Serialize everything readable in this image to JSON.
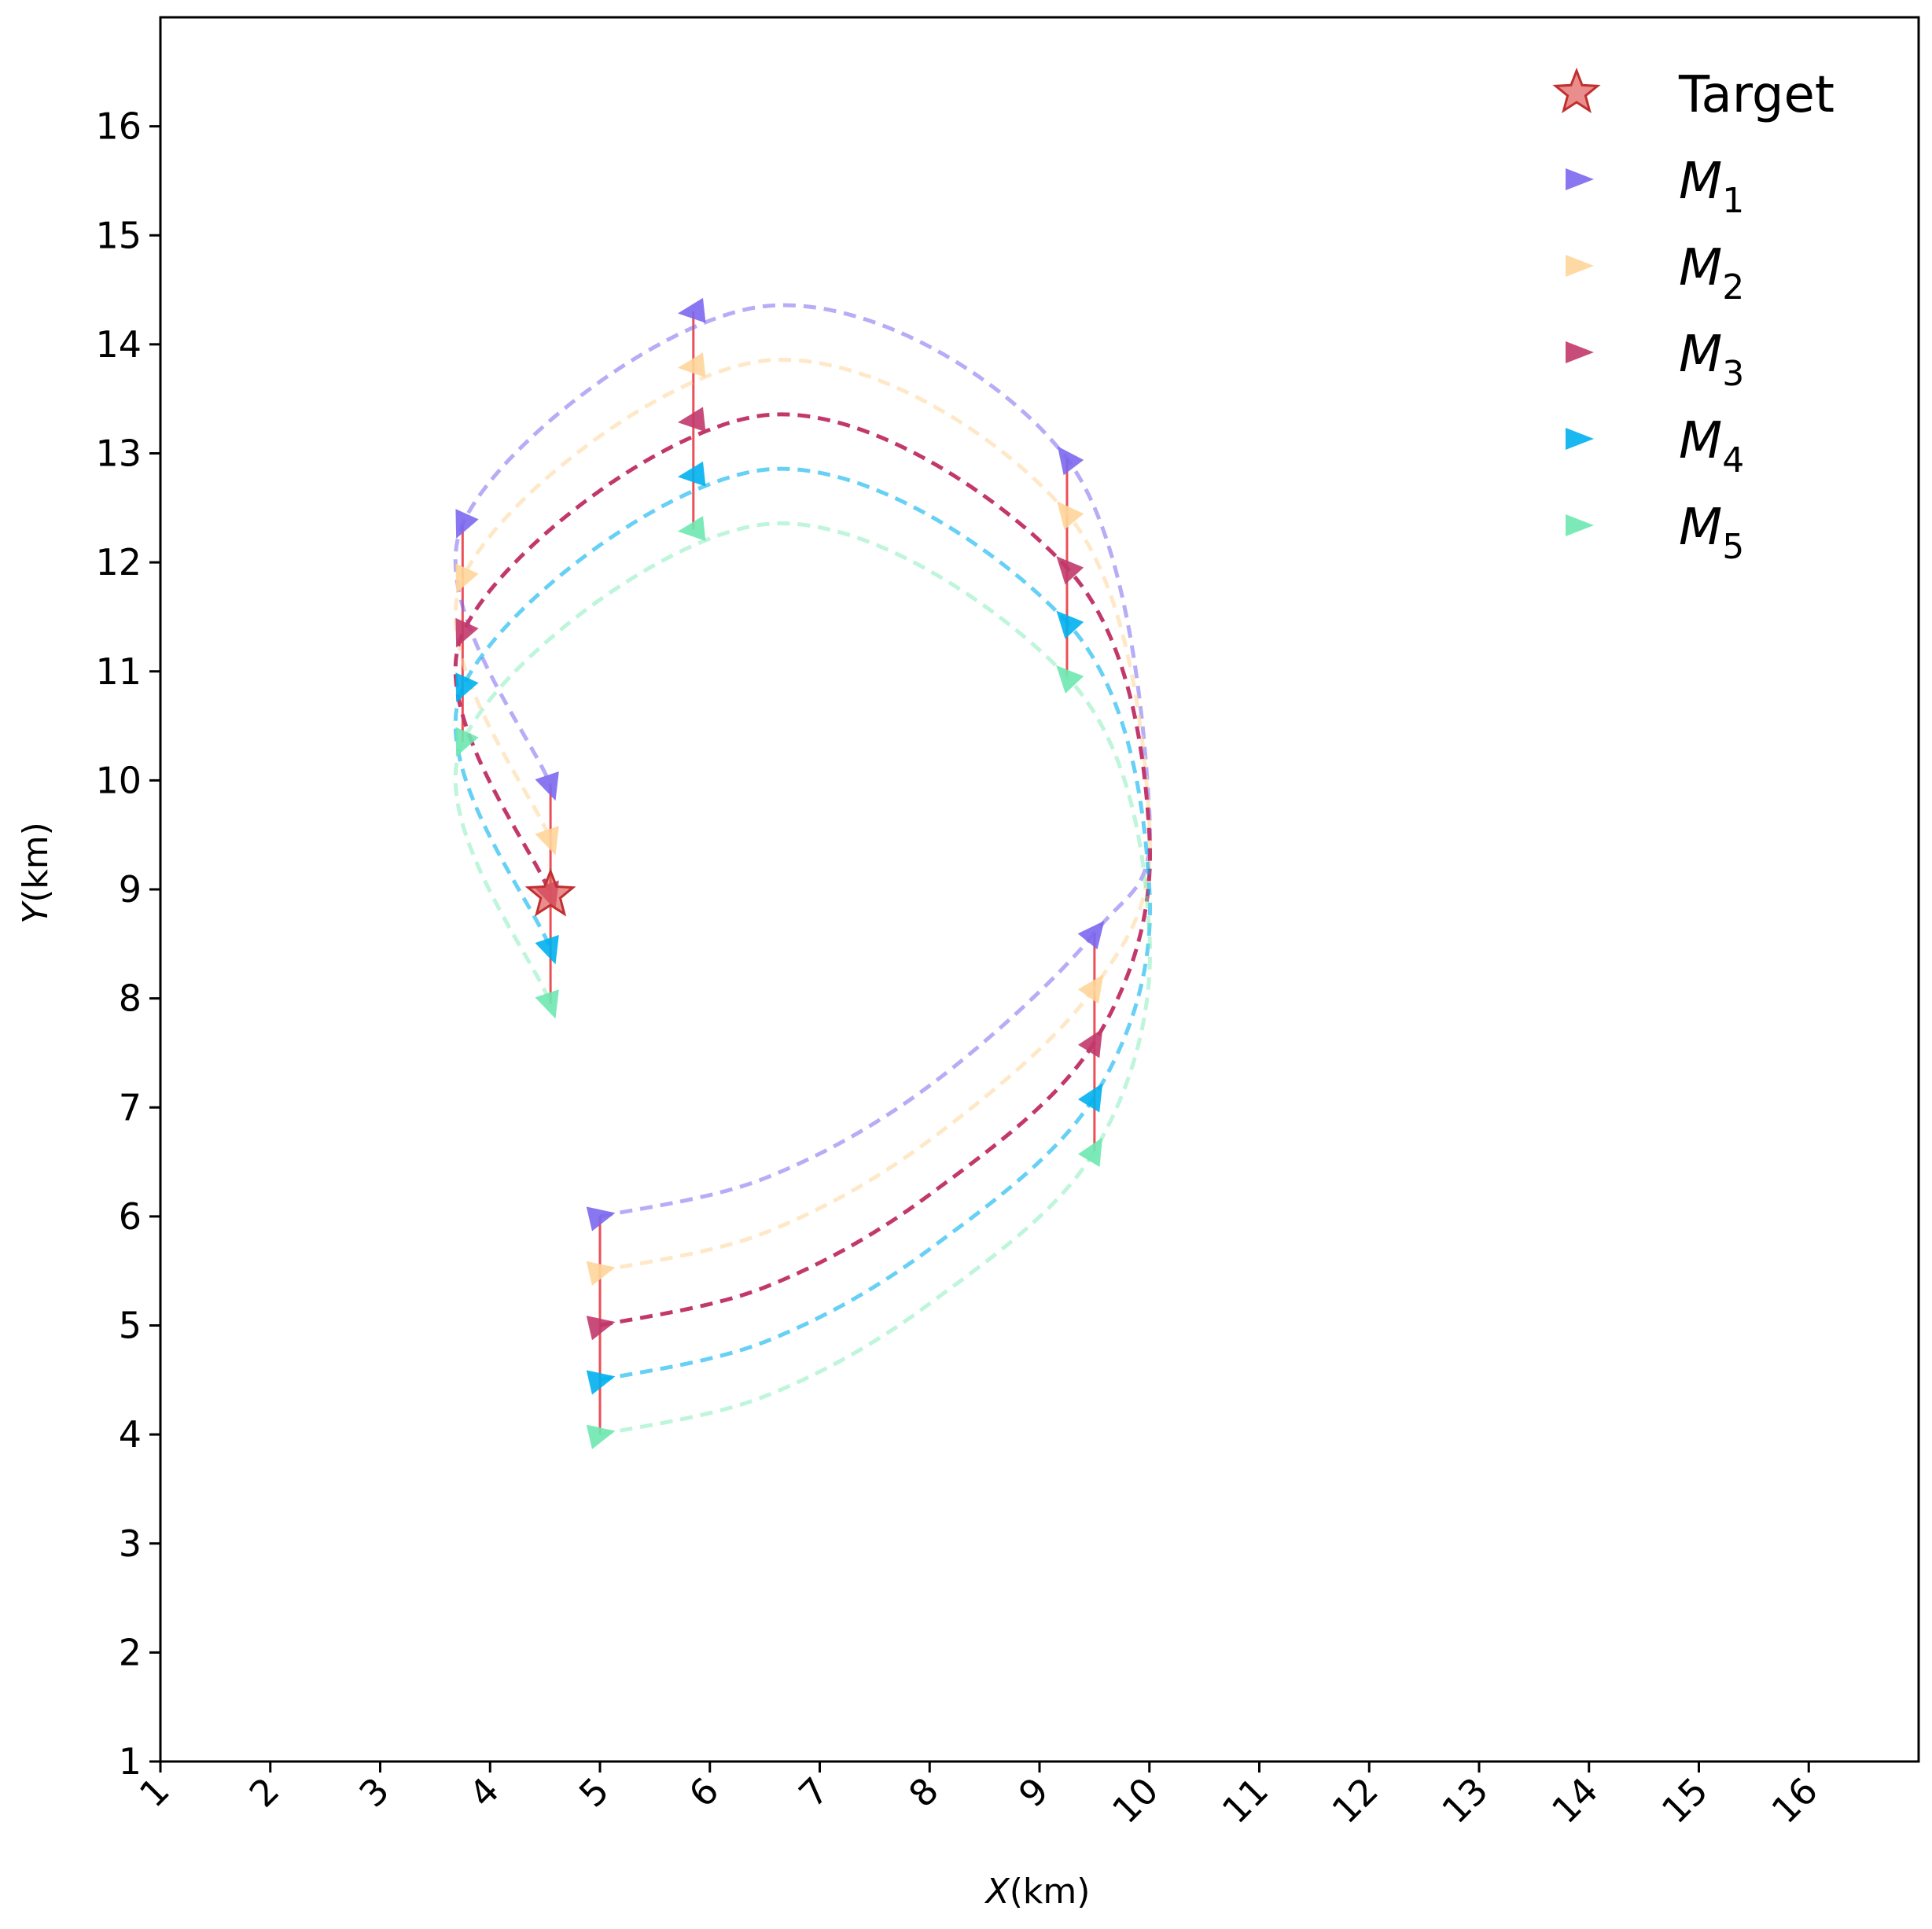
{
  "chart_data": {
    "type": "line",
    "xlabel_var": "X",
    "xlabel_unit": "(km)",
    "ylabel_var": "Y",
    "ylabel_unit": "(km)",
    "xlim": [
      1,
      17
    ],
    "ylim": [
      1,
      17
    ],
    "x_ticks": [
      1,
      2,
      3,
      4,
      5,
      6,
      7,
      8,
      9,
      10,
      11,
      12,
      13,
      14,
      15,
      16
    ],
    "y_ticks": [
      1,
      2,
      3,
      4,
      5,
      6,
      7,
      8,
      9,
      10,
      11,
      12,
      13,
      14,
      15,
      16
    ],
    "grid": false,
    "legend_position": "top-right",
    "target": {
      "label": "Target",
      "x": 4.55,
      "y": 8.95,
      "color": "#e05c5c"
    },
    "series": [
      {
        "name": "M",
        "sub": "1",
        "color": "#7b68ee",
        "line_opacity": 0.55,
        "path": [
          [
            5.0,
            6.0
          ],
          [
            6.5,
            6.35
          ],
          [
            8.0,
            7.2
          ],
          [
            9.5,
            8.6
          ],
          [
            10.0,
            9.7
          ],
          [
            9.25,
            12.95
          ],
          [
            6.5,
            14.35
          ],
          [
            3.75,
            12.35
          ],
          [
            4.55,
            9.95
          ]
        ],
        "markers": [
          [
            5.0,
            6.0
          ],
          [
            9.5,
            8.6
          ],
          [
            9.25,
            12.95
          ],
          [
            5.85,
            14.3
          ],
          [
            3.75,
            12.35
          ],
          [
            4.55,
            9.95
          ]
        ]
      },
      {
        "name": "M",
        "sub": "2",
        "color": "#ffd59a",
        "line_opacity": 0.55,
        "path": [
          [
            5.0,
            5.5
          ],
          [
            6.5,
            5.85
          ],
          [
            8.0,
            6.7
          ],
          [
            9.5,
            8.1
          ],
          [
            10.0,
            9.6
          ],
          [
            9.25,
            12.45
          ],
          [
            6.5,
            13.85
          ],
          [
            3.75,
            11.85
          ],
          [
            4.55,
            9.45
          ]
        ],
        "markers": [
          [
            5.0,
            5.5
          ],
          [
            9.5,
            8.1
          ],
          [
            9.25,
            12.45
          ],
          [
            5.85,
            13.8
          ],
          [
            3.75,
            11.85
          ],
          [
            4.55,
            9.45
          ]
        ]
      },
      {
        "name": "M",
        "sub": "3",
        "color": "#c2386b",
        "line_opacity": 1.0,
        "path": [
          [
            5.0,
            5.0
          ],
          [
            6.5,
            5.35
          ],
          [
            8.0,
            6.2
          ],
          [
            9.5,
            7.6
          ],
          [
            10.0,
            9.5
          ],
          [
            9.25,
            11.95
          ],
          [
            6.5,
            13.35
          ],
          [
            3.75,
            11.35
          ],
          [
            4.55,
            8.95
          ]
        ],
        "markers": [
          [
            5.0,
            5.0
          ],
          [
            9.5,
            7.6
          ],
          [
            9.25,
            11.95
          ],
          [
            5.85,
            13.3
          ],
          [
            3.75,
            11.35
          ],
          [
            4.55,
            8.95
          ]
        ]
      },
      {
        "name": "M",
        "sub": "4",
        "color": "#00b0ee",
        "line_opacity": 0.6,
        "path": [
          [
            5.0,
            4.5
          ],
          [
            6.5,
            4.85
          ],
          [
            8.0,
            5.7
          ],
          [
            9.5,
            7.1
          ],
          [
            10.0,
            9.0
          ],
          [
            9.25,
            11.45
          ],
          [
            6.5,
            12.85
          ],
          [
            3.75,
            10.85
          ],
          [
            4.55,
            8.45
          ]
        ],
        "markers": [
          [
            5.0,
            4.5
          ],
          [
            9.5,
            7.1
          ],
          [
            9.25,
            11.45
          ],
          [
            5.85,
            12.8
          ],
          [
            3.75,
            10.85
          ],
          [
            4.55,
            8.45
          ]
        ]
      },
      {
        "name": "M",
        "sub": "5",
        "color": "#6ee8b0",
        "line_opacity": 0.45,
        "path": [
          [
            5.0,
            4.0
          ],
          [
            6.5,
            4.35
          ],
          [
            8.0,
            5.2
          ],
          [
            9.5,
            6.6
          ],
          [
            10.0,
            8.6
          ],
          [
            9.25,
            10.95
          ],
          [
            6.5,
            12.35
          ],
          [
            3.75,
            10.35
          ],
          [
            4.55,
            7.95
          ]
        ],
        "markers": [
          [
            5.0,
            4.0
          ],
          [
            9.5,
            6.6
          ],
          [
            9.25,
            10.95
          ],
          [
            5.85,
            12.3
          ],
          [
            3.75,
            10.35
          ],
          [
            4.55,
            7.95
          ]
        ]
      }
    ]
  }
}
